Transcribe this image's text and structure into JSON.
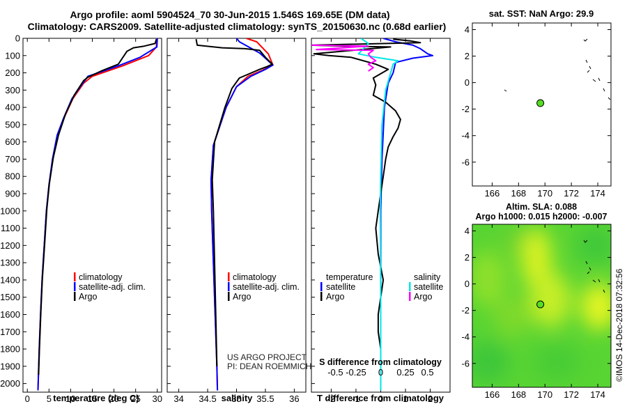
{
  "header": {
    "line1": "Argo profile: aoml 5904524_70 30-Jun-2015 1.546S 169.65E (DM data)",
    "line2": "Climatology: CARS2009. Satellite-adjusted climatology: synTS_20150630.nc (0.68d earlier)"
  },
  "colors": {
    "climatology": "#ff0000",
    "satellite": "#0000ff",
    "argo": "#000000",
    "sat_salinity": "#00e5e5",
    "argo_salinity": "#ff00ff"
  },
  "chart_data": [
    {
      "type": "line",
      "id": "temperature",
      "xlabel": "temperature (deg C)",
      "ylabel": "",
      "xlim": [
        -1,
        31
      ],
      "ylim": [
        2050,
        0
      ],
      "xticks": [
        0,
        5,
        10,
        15,
        20,
        25,
        30
      ],
      "yticks": [
        0,
        100,
        200,
        300,
        400,
        500,
        600,
        700,
        800,
        900,
        1000,
        1100,
        1200,
        1300,
        1400,
        1500,
        1600,
        1700,
        1800,
        1900,
        2000
      ],
      "legend": [
        "climatology",
        "satellite-adj. clim.",
        "Argo"
      ],
      "series": [
        {
          "name": "climatology",
          "color": "#ff0000",
          "points": [
            [
              29.9,
              0
            ],
            [
              29.8,
              50
            ],
            [
              28,
              100
            ],
            [
              22,
              160
            ],
            [
              15,
              220
            ],
            [
              13,
              260
            ],
            [
              10.5,
              350
            ],
            [
              8.5,
              460
            ],
            [
              7,
              560
            ],
            [
              5.9,
              700
            ],
            [
              5,
              850
            ],
            [
              4.4,
              1000
            ],
            [
              3.9,
              1200
            ],
            [
              3.4,
              1400
            ],
            [
              3.05,
              1600
            ],
            [
              2.75,
              1800
            ],
            [
              2.5,
              2000
            ],
            [
              2.45,
              2040
            ]
          ]
        },
        {
          "name": "satellite-adj. clim.",
          "color": "#0000ff",
          "points": [
            [
              30,
              0
            ],
            [
              29.9,
              50
            ],
            [
              26,
              110
            ],
            [
              21,
              160
            ],
            [
              14,
              220
            ],
            [
              12.5,
              270
            ],
            [
              10.3,
              350
            ],
            [
              8.4,
              460
            ],
            [
              6.9,
              560
            ],
            [
              5.8,
              700
            ],
            [
              5,
              850
            ],
            [
              4.4,
              1000
            ],
            [
              3.9,
              1200
            ],
            [
              3.4,
              1400
            ],
            [
              3.05,
              1600
            ],
            [
              2.75,
              1800
            ],
            [
              2.5,
              2000
            ],
            [
              2.45,
              2040
            ]
          ]
        },
        {
          "name": "Argo",
          "color": "#000000",
          "points": [
            [
              29.8,
              5
            ],
            [
              29.5,
              30
            ],
            [
              27,
              45
            ],
            [
              24.5,
              55
            ],
            [
              23,
              75
            ],
            [
              21,
              150
            ],
            [
              17,
              190
            ],
            [
              14,
              225
            ],
            [
              13,
              245
            ],
            [
              10.8,
              330
            ],
            [
              8.8,
              440
            ],
            [
              7.2,
              560
            ],
            [
              6,
              690
            ],
            [
              5.1,
              840
            ],
            [
              4.5,
              990
            ],
            [
              4,
              1190
            ],
            [
              3.45,
              1400
            ],
            [
              3.1,
              1600
            ],
            [
              2.8,
              1800
            ],
            [
              2.6,
              1950
            ]
          ]
        }
      ]
    },
    {
      "type": "line",
      "id": "salinity",
      "xlabel": "salinity",
      "xlim": [
        33.8,
        36.2
      ],
      "ylim": [
        2050,
        0
      ],
      "xticks": [
        34,
        34.5,
        35,
        35.5,
        36
      ],
      "legend": [
        "climatology",
        "satellite-adj. clim.",
        "Argo"
      ],
      "series": [
        {
          "name": "climatology",
          "color": "#ff0000",
          "points": [
            [
              35.17,
              0
            ],
            [
              35.35,
              20
            ],
            [
              35.55,
              90
            ],
            [
              35.63,
              155
            ],
            [
              35.45,
              185
            ],
            [
              35.2,
              220
            ],
            [
              35.0,
              280
            ],
            [
              34.82,
              400
            ],
            [
              34.6,
              620
            ],
            [
              34.56,
              820
            ],
            [
              34.57,
              1000
            ],
            [
              34.6,
              1300
            ],
            [
              34.63,
              1600
            ],
            [
              34.66,
              1900
            ],
            [
              34.67,
              2040
            ]
          ]
        },
        {
          "name": "satellite-adj. clim.",
          "color": "#0000ff",
          "points": [
            [
              35.0,
              0
            ],
            [
              35.05,
              20
            ],
            [
              35.4,
              85
            ],
            [
              35.63,
              155
            ],
            [
              35.5,
              180
            ],
            [
              35.25,
              220
            ],
            [
              35.0,
              280
            ],
            [
              34.82,
              400
            ],
            [
              34.6,
              620
            ],
            [
              34.56,
              820
            ],
            [
              34.57,
              1000
            ],
            [
              34.6,
              1300
            ],
            [
              34.63,
              1600
            ],
            [
              34.66,
              1900
            ],
            [
              34.67,
              2040
            ]
          ]
        },
        {
          "name": "Argo",
          "color": "#000000",
          "points": [
            [
              34.3,
              5
            ],
            [
              34.32,
              40
            ],
            [
              34.75,
              55
            ],
            [
              35.15,
              60
            ],
            [
              35.4,
              70
            ],
            [
              35.5,
              110
            ],
            [
              35.62,
              150
            ],
            [
              35.52,
              165
            ],
            [
              35.4,
              180
            ],
            [
              35.05,
              230
            ],
            [
              34.92,
              290
            ],
            [
              34.8,
              400
            ],
            [
              34.62,
              600
            ],
            [
              34.58,
              820
            ],
            [
              34.6,
              1000
            ],
            [
              34.62,
              1300
            ],
            [
              34.64,
              1600
            ],
            [
              34.66,
              1900
            ]
          ]
        }
      ]
    },
    {
      "type": "line",
      "id": "difference",
      "xlabel": "T difference from climatology",
      "secondary_xlabel": "S difference from climatology",
      "xlim": [
        -2.8,
        2.8
      ],
      "ylim": [
        2050,
        0
      ],
      "xticks": [
        -2,
        -1,
        0,
        1,
        2
      ],
      "xticklabels": [
        "-2",
        "-1",
        "0",
        "1",
        "2"
      ],
      "secondary_xticklabels": [
        "-0.5",
        "-0.25",
        "0",
        "0.25",
        "0.5"
      ],
      "legend_left_title": "temperature",
      "legend_right_title": "salinity",
      "legend_left": [
        "satellite",
        "Argo"
      ],
      "legend_right": [
        "satellite",
        "Argo"
      ],
      "series": [
        {
          "name": "T satellite",
          "color": "#0000ff",
          "points": [
            [
              0.1,
              0
            ],
            [
              0.6,
              20
            ],
            [
              1.3,
              40
            ],
            [
              1.6,
              60
            ],
            [
              1.9,
              90
            ],
            [
              2.1,
              100
            ],
            [
              1.3,
              115
            ],
            [
              0.6,
              140
            ],
            [
              0.5,
              200
            ],
            [
              0.3,
              260
            ],
            [
              0.15,
              400
            ],
            [
              0.05,
              700
            ],
            [
              0,
              1000
            ],
            [
              0,
              2040
            ]
          ]
        },
        {
          "name": "T Argo",
          "color": "#000000",
          "points": [
            [
              0.5,
              5
            ],
            [
              1.2,
              15
            ],
            [
              1.6,
              25
            ],
            [
              -2.8,
              40
            ],
            [
              -1.5,
              45
            ],
            [
              0.4,
              50
            ],
            [
              -2.7,
              90
            ],
            [
              -2.1,
              100
            ],
            [
              -1.2,
              110
            ],
            [
              -0.2,
              150
            ],
            [
              0.3,
              180
            ],
            [
              -0.3,
              230
            ],
            [
              -0.2,
              270
            ],
            [
              -0.3,
              330
            ],
            [
              0.2,
              370
            ],
            [
              0.6,
              420
            ],
            [
              0.8,
              470
            ],
            [
              0.7,
              520
            ],
            [
              0.5,
              570
            ],
            [
              0.3,
              630
            ],
            [
              0.2,
              700
            ],
            [
              0.1,
              800
            ],
            [
              0,
              900
            ],
            [
              -0.1,
              1000
            ],
            [
              -0.2,
              1100
            ],
            [
              -0.1,
              1250
            ],
            [
              0.1,
              1400
            ],
            [
              0,
              1500
            ],
            [
              -0.1,
              1600
            ],
            [
              -0.1,
              1700
            ],
            [
              0,
              1800
            ],
            [
              0,
              1900
            ]
          ]
        },
        {
          "name": "S satellite",
          "color": "#00e5e5",
          "points": [
            [
              -0.8,
              0
            ],
            [
              -0.5,
              30
            ],
            [
              -0.7,
              60
            ],
            [
              -0.9,
              90
            ],
            [
              -0.2,
              110
            ],
            [
              0.7,
              130
            ],
            [
              0.5,
              150
            ],
            [
              0.4,
              200
            ],
            [
              0.2,
              300
            ],
            [
              0.05,
              500
            ],
            [
              0,
              800
            ],
            [
              -0.02,
              1000
            ],
            [
              0,
              1500
            ],
            [
              0,
              2040
            ]
          ]
        },
        {
          "name": "S Argo",
          "color": "#ff00ff",
          "points": [
            [
              -2.8,
              40
            ],
            [
              -0.5,
              45
            ],
            [
              -2.6,
              65
            ],
            [
              -0.3,
              70
            ],
            [
              -0.5,
              90
            ],
            [
              -0.4,
              110
            ],
            [
              -0.2,
              130
            ],
            [
              -0.5,
              150
            ],
            [
              -0.3,
              170
            ],
            [
              -0.5,
              190
            ]
          ]
        }
      ],
      "watermark_line1": "US ARGO PROJECT",
      "watermark_line2": "PI: DEAN ROEMMICH"
    },
    {
      "type": "scatter",
      "id": "sst_map",
      "title": "sat. SST: NaN Argo: 29.9",
      "xlim": [
        164.5,
        175
      ],
      "ylim": [
        -7.8,
        4.5
      ],
      "xticks": [
        166,
        168,
        170,
        172,
        174
      ],
      "yticks": [
        4,
        2,
        0,
        -2,
        -4,
        -6
      ],
      "profile_point": [
        169.65,
        -1.546
      ]
    },
    {
      "type": "heatmap",
      "id": "sla_map",
      "title1": "Altim. SLA: 0.088",
      "title2": "Argo h1000: 0.015 h2000: -0.007",
      "xlim": [
        164.5,
        175
      ],
      "ylim": [
        -7.8,
        4.5
      ],
      "xticks": [
        166,
        168,
        170,
        172,
        174
      ],
      "yticks": [
        4,
        2,
        0,
        -2,
        -4,
        -6
      ],
      "profile_point": [
        169.65,
        -1.546
      ]
    }
  ],
  "footer": {
    "credit": "©IMOS 14-Dec-2018 07:32:56"
  }
}
